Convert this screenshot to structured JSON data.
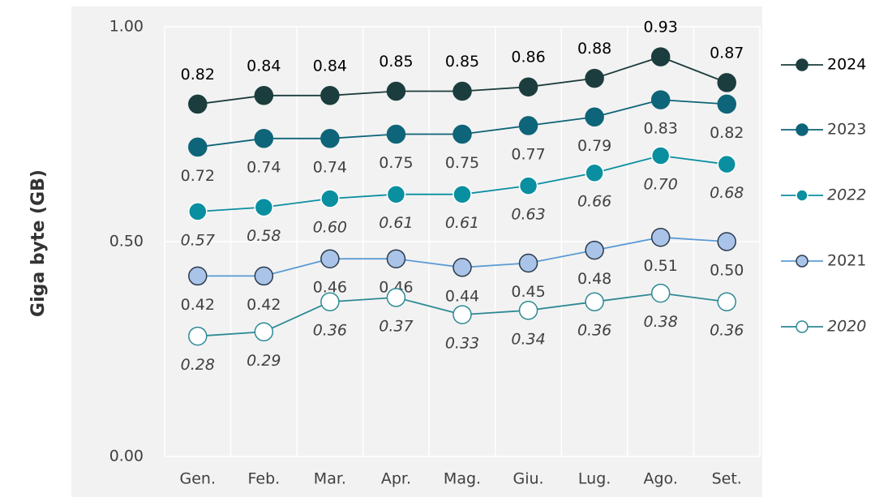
{
  "chart_data": {
    "type": "line",
    "ylabel": "Giga byte (GB)",
    "categories": [
      "Gen.",
      "Feb.",
      "Mar.",
      "Apr.",
      "Mag.",
      "Giu.",
      "Lug.",
      "Ago.",
      "Set."
    ],
    "ylim": [
      0,
      1
    ],
    "yticks": [
      {
        "value": 0,
        "label": "0.00"
      },
      {
        "value": 0.5,
        "label": "0.50"
      },
      {
        "value": 1,
        "label": "1.00"
      }
    ],
    "grid": true,
    "legend": "right",
    "series": [
      {
        "name": "2024",
        "color": "#1c3d3d",
        "marker_fill": "#1c3d3d",
        "marker_stroke": "#1c3d3d",
        "italic": false,
        "label_position": "above",
        "values": [
          0.82,
          0.84,
          0.84,
          0.85,
          0.85,
          0.86,
          0.88,
          0.93,
          0.87
        ],
        "value_labels": [
          "0.82",
          "0.84",
          "0.84",
          "0.85",
          "0.85",
          "0.86",
          "0.88",
          "0.93",
          "0.87"
        ]
      },
      {
        "name": "2023",
        "color": "#0e6478",
        "marker_fill": "#0e6478",
        "marker_stroke": "#0e6478",
        "italic": false,
        "label_position": "below",
        "values": [
          0.72,
          0.74,
          0.74,
          0.75,
          0.75,
          0.77,
          0.79,
          0.83,
          0.82
        ],
        "value_labels": [
          "0.72",
          "0.74",
          "0.74",
          "0.75",
          "0.75",
          "0.77",
          "0.79",
          "0.83",
          "0.82"
        ]
      },
      {
        "name": "2022",
        "color": "#0a8fa0",
        "marker_fill": "#0a8fa0",
        "marker_stroke": "#ffffff",
        "italic": true,
        "label_position": "below",
        "values": [
          0.57,
          0.58,
          0.6,
          0.61,
          0.61,
          0.63,
          0.66,
          0.7,
          0.68
        ],
        "value_labels": [
          "0.57",
          "0.58",
          "0.60",
          "0.61",
          "0.61",
          "0.63",
          "0.66",
          "0.70",
          "0.68"
        ]
      },
      {
        "name": "2021",
        "color": "#5b9bd5",
        "marker_fill": "#a9c4e8",
        "marker_stroke": "#2a3a4a",
        "italic": false,
        "label_position": "below",
        "values": [
          0.42,
          0.42,
          0.46,
          0.46,
          0.44,
          0.45,
          0.48,
          0.51,
          0.5
        ],
        "value_labels": [
          "0.42",
          "0.42",
          "0.46",
          "0.46",
          "0.44",
          "0.45",
          "0.48",
          "0.51",
          "0.50"
        ]
      },
      {
        "name": "2020",
        "color": "#2e8a94",
        "marker_fill": "#ffffff",
        "marker_stroke": "#2e8a94",
        "italic": true,
        "label_position": "below",
        "values": [
          0.28,
          0.29,
          0.36,
          0.37,
          0.33,
          0.34,
          0.36,
          0.38,
          0.36
        ],
        "value_labels": [
          "0.28",
          "0.29",
          "0.36",
          "0.37",
          "0.33",
          "0.34",
          "0.36",
          "0.38",
          "0.36"
        ]
      }
    ]
  }
}
